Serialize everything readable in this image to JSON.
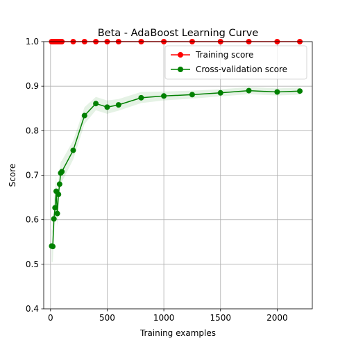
{
  "chart_data": {
    "type": "line",
    "title": "Beta - AdaBoost Learning Curve",
    "xlabel": "Training examples",
    "ylabel": "Score",
    "xlim": [
      -60,
      2310
    ],
    "ylim": [
      0.4,
      1.0
    ],
    "xticks": [
      0,
      500,
      1000,
      1500,
      2000
    ],
    "yticks": [
      0.4,
      0.5,
      0.6,
      0.7,
      0.8,
      0.9,
      1.0
    ],
    "xtick_labels": [
      "0",
      "500",
      "1000",
      "1500",
      "2000"
    ],
    "ytick_labels": [
      "0.4",
      "0.5",
      "0.6",
      "0.7",
      "0.8",
      "0.9",
      "1.0"
    ],
    "grid": true,
    "legend_position": "top-right",
    "series": [
      {
        "name": "Training score",
        "color": "#ff0000",
        "x": [
          10,
          20,
          30,
          40,
          50,
          60,
          70,
          80,
          90,
          100,
          200,
          300,
          400,
          500,
          600,
          800,
          1000,
          1250,
          1500,
          1750,
          2000,
          2200
        ],
        "y": [
          1.0,
          1.0,
          1.0,
          1.0,
          1.0,
          1.0,
          1.0,
          1.0,
          1.0,
          1.0,
          1.0,
          1.0,
          1.0,
          1.0,
          1.0,
          1.0,
          1.0,
          1.0,
          1.0,
          1.0,
          1.0,
          1.0
        ],
        "band_lower": [
          1.0,
          1.0,
          1.0,
          1.0,
          1.0,
          1.0,
          1.0,
          1.0,
          1.0,
          1.0,
          1.0,
          1.0,
          1.0,
          1.0,
          1.0,
          1.0,
          1.0,
          1.0,
          1.0,
          1.0,
          1.0,
          1.0
        ],
        "band_upper": [
          1.0,
          1.0,
          1.0,
          1.0,
          1.0,
          1.0,
          1.0,
          1.0,
          1.0,
          1.0,
          1.0,
          1.0,
          1.0,
          1.0,
          1.0,
          1.0,
          1.0,
          1.0,
          1.0,
          1.0,
          1.0,
          1.0
        ]
      },
      {
        "name": "Cross-validation score",
        "color": "#008000",
        "x": [
          10,
          20,
          30,
          40,
          50,
          60,
          70,
          80,
          90,
          100,
          200,
          300,
          400,
          500,
          600,
          800,
          1000,
          1250,
          1500,
          1750,
          2000,
          2200
        ],
        "y": [
          0.541,
          0.54,
          0.602,
          0.627,
          0.664,
          0.614,
          0.657,
          0.68,
          0.705,
          0.708,
          0.756,
          0.834,
          0.861,
          0.853,
          0.858,
          0.874,
          0.878,
          0.881,
          0.885,
          0.89,
          0.887,
          0.889
        ],
        "band_lower": [
          0.505,
          0.505,
          0.565,
          0.59,
          0.63,
          0.585,
          0.625,
          0.65,
          0.68,
          0.685,
          0.735,
          0.815,
          0.846,
          0.838,
          0.845,
          0.862,
          0.868,
          0.872,
          0.877,
          0.882,
          0.879,
          0.881
        ],
        "band_upper": [
          0.58,
          0.575,
          0.64,
          0.665,
          0.7,
          0.645,
          0.69,
          0.712,
          0.73,
          0.733,
          0.778,
          0.853,
          0.876,
          0.868,
          0.871,
          0.887,
          0.888,
          0.89,
          0.893,
          0.898,
          0.895,
          0.897
        ]
      }
    ]
  }
}
